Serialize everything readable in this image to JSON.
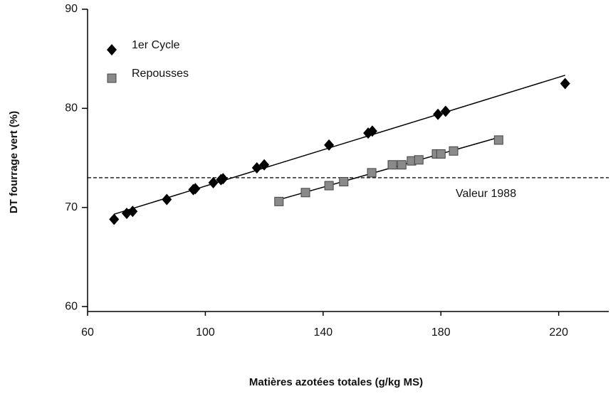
{
  "chart_data": {
    "type": "scatter",
    "x_label": "Matières azotées totales (g/kg MS)",
    "y_label": "DT fourrage vert (%)",
    "xlim": [
      60,
      237
    ],
    "ylim": [
      59.5,
      90
    ],
    "xticks": [
      60,
      100,
      140,
      180,
      220
    ],
    "yticks": [
      60,
      70,
      80,
      90
    ],
    "legend": "top-left",
    "trend_lines": true,
    "series": [
      {
        "name": "1er Cycle",
        "color": "#000000",
        "marker": "diamond",
        "x": [
          69,
          73.3,
          75.3,
          86.9,
          95.9,
          96.6,
          102.7,
          105.3,
          106,
          117.5,
          120,
          142,
          155.3,
          156.7,
          179,
          181.6,
          222.2
        ],
        "values": [
          68.8,
          69.4,
          69.6,
          70.8,
          71.8,
          71.9,
          72.5,
          72.8,
          72.9,
          74.0,
          74.3,
          76.3,
          77.5,
          77.7,
          79.4,
          79.7,
          82.5
        ]
      },
      {
        "name": "Repousses",
        "color": "#8a8a8a",
        "marker": "square",
        "x": [
          125,
          134,
          142,
          147,
          156.5,
          163.5,
          166.7,
          170,
          172.5,
          178.5,
          180,
          184.3,
          199.6
        ],
        "values": [
          70.6,
          71.5,
          72.2,
          72.6,
          73.5,
          74.3,
          74.3,
          74.7,
          74.8,
          75.4,
          75.4,
          75.7,
          76.8
        ]
      }
    ],
    "reference_line": {
      "value": 73,
      "label": "Valeur 1988"
    }
  }
}
